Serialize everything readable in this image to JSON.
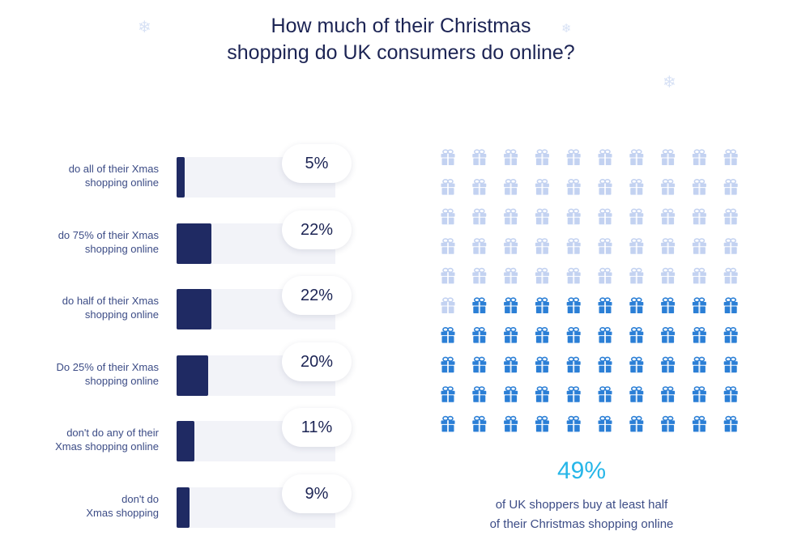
{
  "title": {
    "line1": "How much of their Christmas",
    "line2": "shopping do UK consumers do online?"
  },
  "icons": {
    "decor": "snowflake-icon",
    "unit": "gift-icon"
  },
  "colors": {
    "bar_fill": "#1f2a63",
    "bar_track": "#f2f3f8",
    "gift_highlight": "#2b7fd6",
    "gift_muted": "#c3d2f1",
    "accent": "#26b6e8"
  },
  "chart_data": [
    {
      "type": "bar",
      "orientation": "horizontal",
      "categories": [
        [
          "do all of their Xmas",
          "shopping online"
        ],
        [
          "do 75% of their Xmas",
          "shopping online"
        ],
        [
          "do half of their Xmas",
          "shopping online"
        ],
        [
          "Do 25% of their Xmas",
          "shopping online"
        ],
        [
          "don't do any of their",
          "Xmas shopping online"
        ],
        [
          "don't do",
          "Xmas shopping"
        ]
      ],
      "values": [
        5,
        22,
        22,
        20,
        11,
        9
      ],
      "value_labels": [
        "5%",
        "22%",
        "22%",
        "20%",
        "11%",
        "9%"
      ],
      "xlim": [
        0,
        100
      ]
    },
    {
      "type": "waffle",
      "rows": 10,
      "cols": 10,
      "total": 100,
      "highlighted": 49,
      "highlight_value_label": "49%",
      "caption": [
        "of UK shoppers buy at least half",
        "of their Christmas shopping online"
      ]
    }
  ]
}
